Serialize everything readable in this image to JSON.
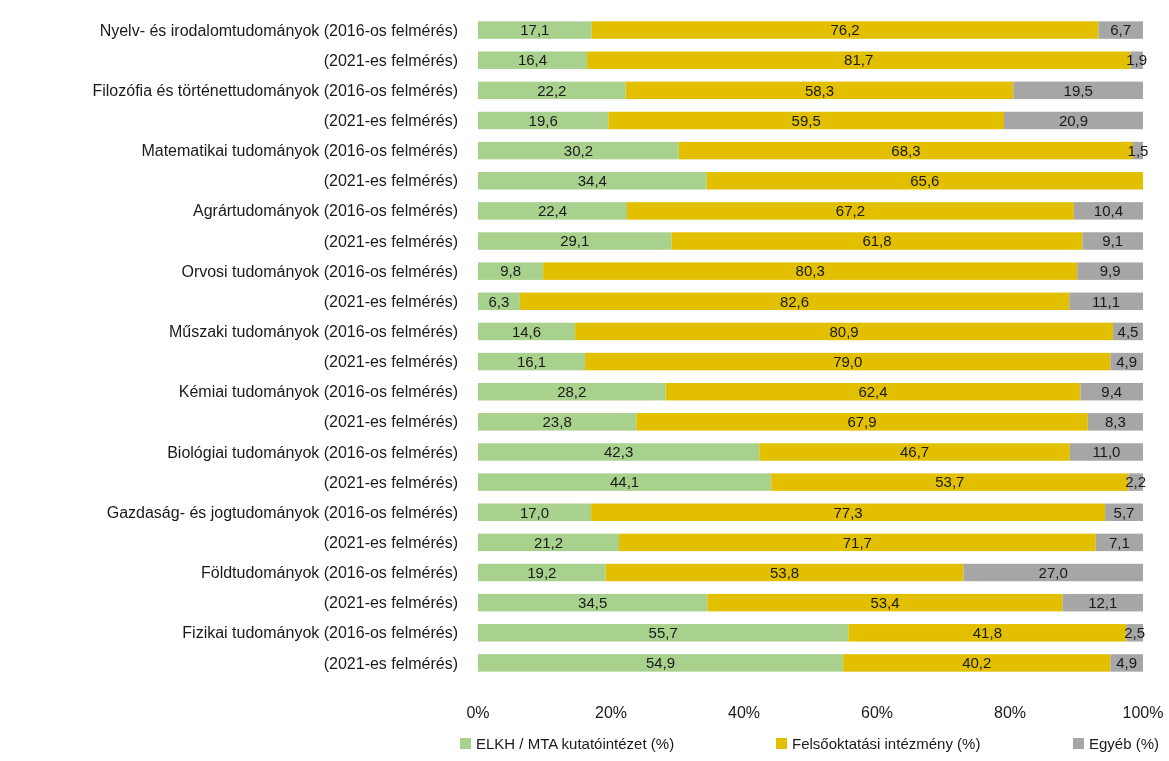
{
  "chart_data": {
    "type": "bar",
    "orientation": "horizontal",
    "stacked": true,
    "legend": "bottom",
    "categories": [
      "Nyelv- és irodalomtudományok (2016-os felmérés)",
      "(2021-es felmérés)",
      "Filozófia és történettudományok (2016-os felmérés)",
      "(2021-es felmérés)",
      "Matematikai tudományok (2016-os felmérés)",
      "(2021-es felmérés)",
      "Agrártudományok (2016-os felmérés)",
      "(2021-es felmérés)",
      "Orvosi tudományok (2016-os felmérés)",
      "(2021-es felmérés)",
      "Műszaki tudományok (2016-os felmérés)",
      "(2021-es felmérés)",
      "Kémiai tudományok (2016-os felmérés)",
      "(2021-es felmérés)",
      "Biológiai tudományok (2016-os felmérés)",
      "(2021-es felmérés)",
      "Gazdaság- és jogtudományok (2016-os felmérés)",
      "(2021-es felmérés)",
      "Földtudományok (2016-os felmérés)",
      "(2021-es felmérés)",
      "Fizikai tudományok (2016-os felmérés)",
      "(2021-es felmérés)"
    ],
    "xlim": [
      0,
      100
    ],
    "xticks": [
      {
        "value": 0,
        "label": "0%"
      },
      {
        "value": 20,
        "label": "20%"
      },
      {
        "value": 40,
        "label": "40%"
      },
      {
        "value": 60,
        "label": "60%"
      },
      {
        "value": 80,
        "label": "80%"
      },
      {
        "value": 100,
        "label": "100%"
      }
    ],
    "series": [
      {
        "name": "ELKH / MTA kutatóintézet (%)",
        "color": "#a9d18e",
        "values": [
          17.1,
          16.4,
          22.2,
          19.6,
          30.2,
          34.4,
          22.4,
          29.1,
          9.8,
          6.3,
          14.6,
          16.1,
          28.2,
          23.8,
          42.3,
          44.1,
          17.0,
          21.2,
          19.2,
          34.5,
          55.7,
          54.9
        ],
        "value_labels": [
          "17,1",
          "16,4",
          "22,2",
          "19,6",
          "30,2",
          "34,4",
          "22,4",
          "29,1",
          "9,8",
          "6,3",
          "14,6",
          "16,1",
          "28,2",
          "23,8",
          "42,3",
          "44,1",
          "17,0",
          "21,2",
          "19,2",
          "34,5",
          "55,7",
          "54,9"
        ]
      },
      {
        "name": "Felsőoktatási intézmény (%)",
        "color": "#e2c000",
        "values": [
          76.2,
          81.7,
          58.3,
          59.5,
          68.3,
          65.6,
          67.2,
          61.8,
          80.3,
          82.6,
          80.9,
          79.0,
          62.4,
          67.9,
          46.7,
          53.7,
          77.3,
          71.7,
          53.8,
          53.4,
          41.8,
          40.2
        ],
        "value_labels": [
          "76,2",
          "81,7",
          "58,3",
          "59,5",
          "68,3",
          "65,6",
          "67,2",
          "61,8",
          "80,3",
          "82,6",
          "80,9",
          "79,0",
          "62,4",
          "67,9",
          "46,7",
          "53,7",
          "77,3",
          "71,7",
          "53,8",
          "53,4",
          "41,8",
          "40,2"
        ]
      },
      {
        "name": "Egyéb (%)",
        "color": "#a6a6a6",
        "values": [
          6.7,
          1.9,
          19.5,
          20.9,
          1.5,
          null,
          10.4,
          9.1,
          9.9,
          11.1,
          4.5,
          4.9,
          9.4,
          8.3,
          11.0,
          2.2,
          5.7,
          7.1,
          27.0,
          12.1,
          2.5,
          4.9
        ],
        "value_labels": [
          "6,7",
          "1,9",
          "19,5",
          "20,9",
          "1,5",
          null,
          "10,4",
          "9,1",
          "9,9",
          "11,1",
          "4,5",
          "4,9",
          "9,4",
          "8,3",
          "11,0",
          "2,2",
          "5,7",
          "7,1",
          "27,0",
          "12,1",
          "2,5",
          "4,9"
        ]
      }
    ]
  }
}
